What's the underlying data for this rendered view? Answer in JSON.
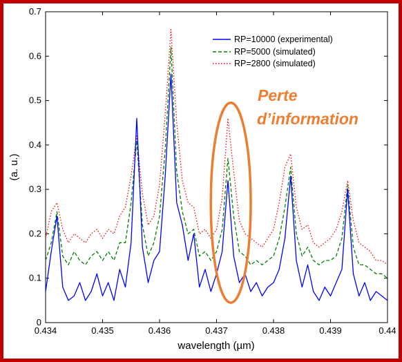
{
  "chart_data": {
    "type": "line",
    "xlabel": "wavelength (µm)",
    "ylabel": "(a. u.)",
    "xlim": [
      0.434,
      0.44
    ],
    "ylim": [
      0,
      0.7
    ],
    "x_ticks": [
      "0.434",
      "0.435",
      "0.436",
      "0.437",
      "0.438",
      "0.439",
      "0.44"
    ],
    "y_ticks": [
      "0",
      "0.1",
      "0.2",
      "0.3",
      "0.4",
      "0.5",
      "0.6",
      "0.7"
    ],
    "legend_position": "top-right",
    "grid": false,
    "series": [
      {
        "name": "RP=10000 (experimental)",
        "color": "#0000ff",
        "style": "solid",
        "x": [
          0.434,
          0.4341,
          0.4342,
          0.4343,
          0.4344,
          0.4345,
          0.4346,
          0.4347,
          0.4348,
          0.4349,
          0.435,
          0.4351,
          0.4352,
          0.4353,
          0.4354,
          0.4355,
          0.4356,
          0.4357,
          0.4358,
          0.4359,
          0.436,
          0.4361,
          0.4362,
          0.4363,
          0.4364,
          0.4365,
          0.4366,
          0.4367,
          0.4368,
          0.4369,
          0.437,
          0.4371,
          0.4372,
          0.4373,
          0.4374,
          0.4375,
          0.4376,
          0.4377,
          0.4378,
          0.4379,
          0.438,
          0.4381,
          0.4382,
          0.4383,
          0.4384,
          0.4385,
          0.4386,
          0.4387,
          0.4388,
          0.4389,
          0.439,
          0.4391,
          0.4392,
          0.4393,
          0.4394,
          0.4395,
          0.4396,
          0.4397,
          0.4398,
          0.4399,
          0.44
        ],
        "y": [
          0.07,
          0.16,
          0.24,
          0.08,
          0.05,
          0.06,
          0.09,
          0.05,
          0.07,
          0.11,
          0.06,
          0.09,
          0.05,
          0.12,
          0.08,
          0.18,
          0.46,
          0.17,
          0.09,
          0.14,
          0.16,
          0.33,
          0.56,
          0.27,
          0.22,
          0.14,
          0.2,
          0.08,
          0.12,
          0.07,
          0.11,
          0.16,
          0.32,
          0.15,
          0.09,
          0.11,
          0.07,
          0.09,
          0.06,
          0.08,
          0.09,
          0.12,
          0.19,
          0.33,
          0.14,
          0.08,
          0.13,
          0.07,
          0.05,
          0.08,
          0.06,
          0.09,
          0.12,
          0.3,
          0.11,
          0.06,
          0.09,
          0.05,
          0.07,
          0.06,
          0.05
        ]
      },
      {
        "name": "RP=5000 (simulated)",
        "color": "#008000",
        "style": "dashed",
        "x": [
          0.434,
          0.4341,
          0.4342,
          0.4343,
          0.4344,
          0.4345,
          0.4346,
          0.4347,
          0.4348,
          0.4349,
          0.435,
          0.4351,
          0.4352,
          0.4353,
          0.4354,
          0.4355,
          0.4356,
          0.4357,
          0.4358,
          0.4359,
          0.436,
          0.4361,
          0.4362,
          0.4363,
          0.4364,
          0.4365,
          0.4366,
          0.4367,
          0.4368,
          0.4369,
          0.437,
          0.4371,
          0.4372,
          0.4373,
          0.4374,
          0.4375,
          0.4376,
          0.4377,
          0.4378,
          0.4379,
          0.438,
          0.4381,
          0.4382,
          0.4383,
          0.4384,
          0.4385,
          0.4386,
          0.4387,
          0.4388,
          0.4389,
          0.439,
          0.4391,
          0.4392,
          0.4393,
          0.4394,
          0.4395,
          0.4396,
          0.4397,
          0.4398,
          0.4399,
          0.44
        ],
        "y": [
          0.14,
          0.18,
          0.25,
          0.15,
          0.13,
          0.16,
          0.14,
          0.13,
          0.15,
          0.16,
          0.14,
          0.16,
          0.14,
          0.18,
          0.18,
          0.27,
          0.41,
          0.22,
          0.15,
          0.18,
          0.24,
          0.39,
          0.62,
          0.34,
          0.25,
          0.2,
          0.21,
          0.15,
          0.16,
          0.14,
          0.16,
          0.21,
          0.37,
          0.24,
          0.16,
          0.15,
          0.13,
          0.14,
          0.13,
          0.14,
          0.15,
          0.19,
          0.26,
          0.35,
          0.2,
          0.15,
          0.17,
          0.14,
          0.13,
          0.14,
          0.14,
          0.15,
          0.19,
          0.31,
          0.17,
          0.13,
          0.13,
          0.12,
          0.11,
          0.11,
          0.1
        ]
      },
      {
        "name": "RP=2800 (simulated)",
        "color": "#ff0000",
        "style": "dotted",
        "x": [
          0.434,
          0.4341,
          0.4342,
          0.4343,
          0.4344,
          0.4345,
          0.4346,
          0.4347,
          0.4348,
          0.4349,
          0.435,
          0.4351,
          0.4352,
          0.4353,
          0.4354,
          0.4355,
          0.4356,
          0.4357,
          0.4358,
          0.4359,
          0.436,
          0.4361,
          0.4362,
          0.4363,
          0.4364,
          0.4365,
          0.4366,
          0.4367,
          0.4368,
          0.4369,
          0.437,
          0.4371,
          0.4372,
          0.4373,
          0.4374,
          0.4375,
          0.4376,
          0.4377,
          0.4378,
          0.4379,
          0.438,
          0.4381,
          0.4382,
          0.4383,
          0.4384,
          0.4385,
          0.4386,
          0.4387,
          0.4388,
          0.4389,
          0.439,
          0.4391,
          0.4392,
          0.4393,
          0.4394,
          0.4395,
          0.4396,
          0.4397,
          0.4398,
          0.4399,
          0.44
        ],
        "y": [
          0.19,
          0.25,
          0.27,
          0.21,
          0.18,
          0.2,
          0.19,
          0.18,
          0.2,
          0.21,
          0.19,
          0.21,
          0.2,
          0.24,
          0.26,
          0.33,
          0.42,
          0.29,
          0.22,
          0.24,
          0.31,
          0.47,
          0.66,
          0.45,
          0.32,
          0.27,
          0.26,
          0.2,
          0.21,
          0.19,
          0.21,
          0.28,
          0.46,
          0.34,
          0.23,
          0.2,
          0.19,
          0.18,
          0.17,
          0.19,
          0.21,
          0.27,
          0.35,
          0.38,
          0.26,
          0.21,
          0.22,
          0.18,
          0.17,
          0.18,
          0.19,
          0.21,
          0.25,
          0.32,
          0.23,
          0.18,
          0.17,
          0.16,
          0.14,
          0.14,
          0.13
        ]
      }
    ],
    "annotation": {
      "text_line1": "Perte",
      "text_line2": "d’information",
      "color": "#ed7d31",
      "ellipse_center": [
        0.43725,
        0.27
      ],
      "ellipse_x_radius": 0.00035,
      "ellipse_y_radius": 0.225
    }
  }
}
